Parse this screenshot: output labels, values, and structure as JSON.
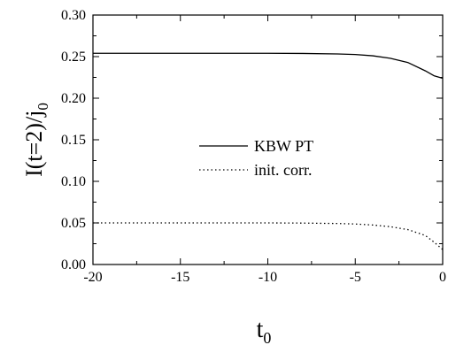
{
  "chart_data": {
    "type": "line",
    "title": "",
    "xlabel": "t",
    "xlabel_sub": "0",
    "ylabel_parts": [
      "I(t=2)/j",
      "0"
    ],
    "xlim": [
      -20,
      0
    ],
    "ylim": [
      0.0,
      0.3
    ],
    "x_ticks": [
      -20,
      -15,
      -10,
      -5,
      0
    ],
    "x_tick_labels": [
      "-20",
      "-15",
      "-10",
      "-5",
      "0"
    ],
    "y_ticks": [
      0.0,
      0.05,
      0.1,
      0.15,
      0.2,
      0.25,
      0.3
    ],
    "y_tick_labels": [
      "0.00",
      "0.05",
      "0.10",
      "0.15",
      "0.20",
      "0.25",
      "0.30"
    ],
    "grid": false,
    "legend_position": "center",
    "series": [
      {
        "name": "KBW PT",
        "style": "solid",
        "color": "#000000",
        "x": [
          -20,
          -18,
          -16,
          -14,
          -12,
          -10,
          -8,
          -6,
          -5,
          -4,
          -3,
          -2,
          -1,
          -0.5,
          0
        ],
        "y": [
          0.254,
          0.254,
          0.254,
          0.254,
          0.254,
          0.254,
          0.2538,
          0.2532,
          0.2525,
          0.251,
          0.248,
          0.243,
          0.233,
          0.227,
          0.224
        ]
      },
      {
        "name": "init. corr.",
        "style": "dotted",
        "color": "#000000",
        "x": [
          -20,
          -18,
          -16,
          -14,
          -12,
          -10,
          -8,
          -6,
          -5,
          -4,
          -3,
          -2,
          -1,
          -0.5,
          0
        ],
        "y": [
          0.05,
          0.05,
          0.05,
          0.05,
          0.05,
          0.05,
          0.0498,
          0.0493,
          0.0487,
          0.0475,
          0.0455,
          0.042,
          0.035,
          0.027,
          0.018
        ]
      }
    ]
  }
}
